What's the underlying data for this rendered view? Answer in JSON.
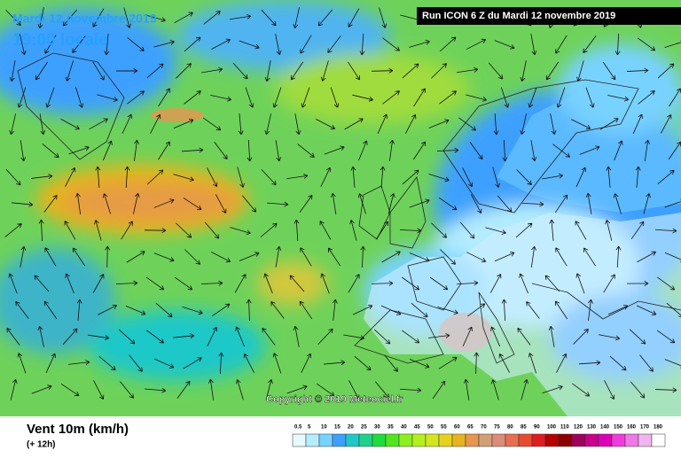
{
  "header": {
    "date": "Mardi 12 novembre 2019",
    "time": "19:00 locale",
    "run": "Run ICON 6 Z du Mardi 12 novembre 2019"
  },
  "copyright": "Copyright © 2019 Meteociel.fr",
  "footer": {
    "title": "Vent 10m (km/h)",
    "subtitle": "(+ 12h)"
  },
  "legend": {
    "labels": [
      "0.5",
      "5",
      "10",
      "15",
      "20",
      "25",
      "30",
      "35",
      "40",
      "45",
      "50",
      "55",
      "60",
      "65",
      "70",
      "75",
      "80",
      "85",
      "90",
      "100",
      "110",
      "120",
      "130",
      "140",
      "150",
      "160",
      "170",
      "180"
    ],
    "colors": [
      "#e6faff",
      "#b4ecff",
      "#78d2ff",
      "#3ca0ff",
      "#1ec8c8",
      "#1ed28c",
      "#1edc3c",
      "#50e61e",
      "#8cf01e",
      "#b4f01e",
      "#d2e61e",
      "#e6d21e",
      "#e6b41e",
      "#e69650",
      "#d2a078",
      "#dc8c78",
      "#e66e50",
      "#e64b32",
      "#dc1e1e",
      "#b40000",
      "#8c0000",
      "#a0005a",
      "#c8008c",
      "#dc00b4",
      "#f03cdc",
      "#f078e6",
      "#f0b4f0",
      "#ffffff"
    ]
  }
}
